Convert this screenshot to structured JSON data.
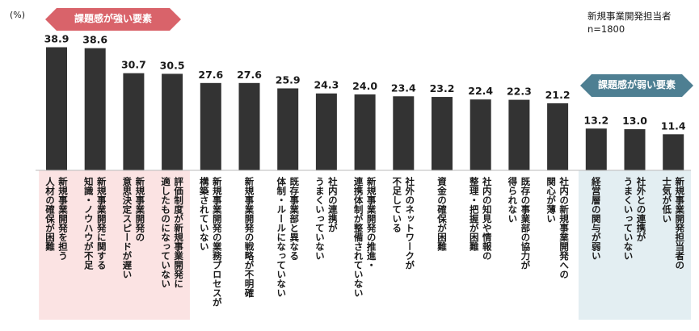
{
  "chart_data": {
    "type": "bar",
    "unit_label": "(%)",
    "sample_note": [
      "新規事業開発担当者",
      "n=1800"
    ],
    "strong_label": "課題感が強い要素",
    "weak_label": "課題感が弱い要素",
    "colors": {
      "bar": "#333333",
      "strong_arrow": "#d9636a",
      "strong_band": "#fbe3e3",
      "weak_arrow": "#4e7f92",
      "weak_band": "#e3eef2"
    },
    "categories": [
      [
        "新規事業開発を担う",
        "人材の確保が困難"
      ],
      [
        "新規事業開発に関する",
        "知識・ノウハウが不足"
      ],
      [
        "新規事業開発の",
        "意思決定スピードが遅い"
      ],
      [
        "評価制度が新規事業開発に",
        "適したものになっていない"
      ],
      [
        "新規事業開発の業務プロセスが",
        "構築されていない"
      ],
      [
        "新規事業開発の戦略が不明確"
      ],
      [
        "既存事業部と異なる",
        "体制・ルールになっていない"
      ],
      [
        "社内の連携が",
        "うまくいっていない"
      ],
      [
        "新規事業開発の推進・",
        "連携体制が整備されていない"
      ],
      [
        "社外のネットワークが",
        "不足している"
      ],
      [
        "資金の確保が困難"
      ],
      [
        "社内の知見や情報の",
        "整理・把握が困難"
      ],
      [
        "既存の事業部の協力が",
        "得られない"
      ],
      [
        "社内の新規事業開発への",
        "関心が薄い"
      ],
      [
        "経営層の関与が弱い"
      ],
      [
        "社外との連携が",
        "うまくいっていない"
      ],
      [
        "新規事業開発担当者の",
        "士気が低い"
      ]
    ],
    "values": [
      38.9,
      38.6,
      30.7,
      30.5,
      27.6,
      27.6,
      25.9,
      24.3,
      24.0,
      23.4,
      23.2,
      22.4,
      22.3,
      21.2,
      13.2,
      13.0,
      11.4
    ],
    "value_labels": [
      "38.9",
      "38.6",
      "30.7",
      "30.5",
      "27.6",
      "27.6",
      "25.9",
      "24.3",
      "24.0",
      "23.4",
      "23.2",
      "22.4",
      "22.3",
      "21.2",
      "13.2",
      "13.0",
      "11.4"
    ],
    "strong_range": [
      0,
      3
    ],
    "weak_range": [
      14,
      16
    ],
    "ylim": [
      0,
      40
    ]
  }
}
